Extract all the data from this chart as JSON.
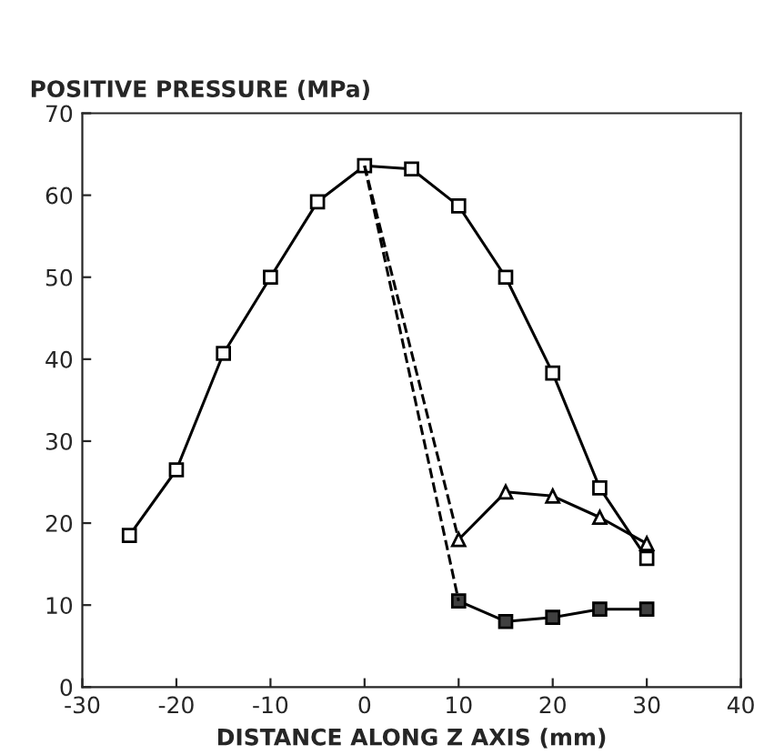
{
  "chart_data": {
    "type": "line",
    "ylabel": "POSITIVE PRESSURE (MPa)",
    "xlabel": "DISTANCE ALONG Z AXIS (mm)",
    "xlim": [
      -30,
      40
    ],
    "xticks": [
      -30,
      -20,
      -10,
      0,
      10,
      20,
      30,
      40
    ],
    "ylim": [
      0,
      70
    ],
    "yticks": [
      0,
      10,
      20,
      30,
      40,
      50,
      60,
      70
    ],
    "grid": false,
    "legend": false,
    "series": [
      {
        "color": "#ffffff",
        "marker": "square",
        "line_style": "solid",
        "x": [
          -25,
          -20,
          -15,
          -10,
          -5,
          0,
          5,
          10,
          15,
          20,
          25,
          30
        ],
        "values": [
          18.5,
          26.5,
          40.7,
          50,
          59.2,
          63.6,
          63.2,
          58.7,
          50,
          38.3,
          24.3,
          15.7
        ]
      },
      {
        "color": "#ffffff",
        "marker": "triangle",
        "line_style": "solid",
        "x": [
          10,
          15,
          20,
          25,
          30
        ],
        "values": [
          18,
          23.8,
          23.3,
          20.7,
          17.5
        ]
      },
      {
        "color": "#404040",
        "marker": "square",
        "line_style": "solid",
        "x": [
          10,
          15,
          20,
          25,
          30
        ],
        "values": [
          10.5,
          8,
          8.5,
          9.5,
          9.5
        ]
      },
      {
        "color": "#000000",
        "marker": "none",
        "line_style": "dashed",
        "x": [
          0,
          10
        ],
        "values": [
          63.6,
          18
        ]
      },
      {
        "color": "#000000",
        "marker": "none",
        "line_style": "dashed",
        "x": [
          0,
          10
        ],
        "values": [
          63.6,
          10.5
        ]
      }
    ]
  }
}
